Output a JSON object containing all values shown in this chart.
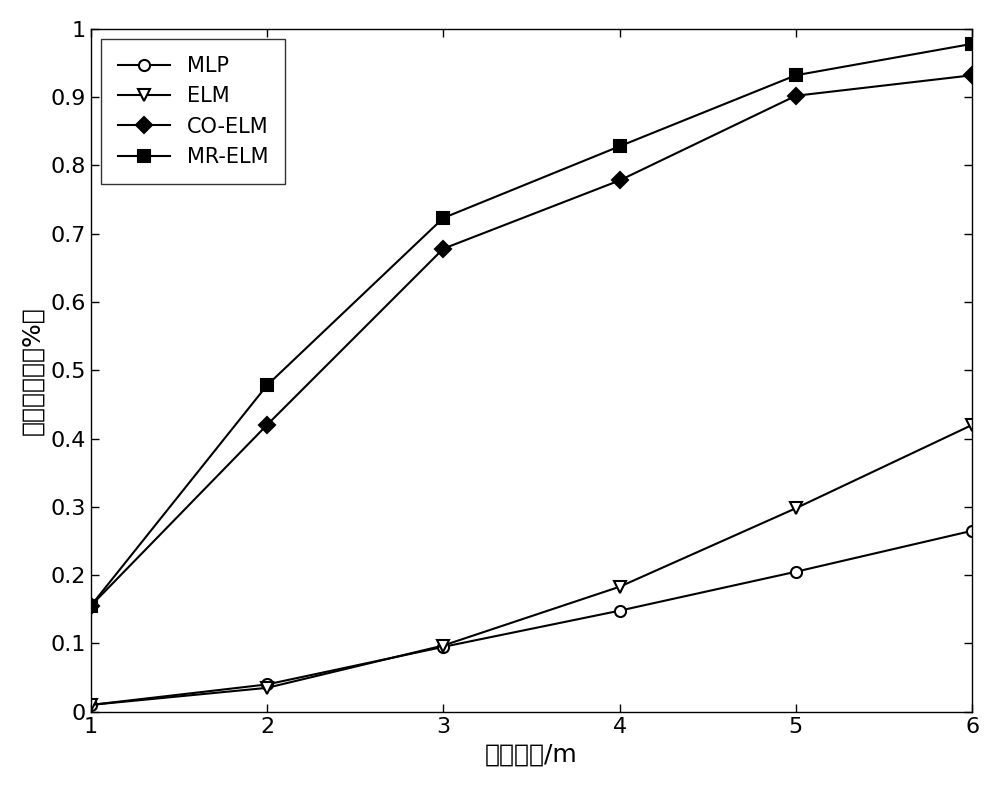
{
  "x": [
    1,
    2,
    3,
    4,
    5,
    6
  ],
  "MLP": [
    0.01,
    0.04,
    0.095,
    0.148,
    0.205,
    0.265
  ],
  "ELM": [
    0.01,
    0.035,
    0.097,
    0.183,
    0.298,
    0.42
  ],
  "CO_ELM": [
    0.155,
    0.42,
    0.678,
    0.778,
    0.902,
    0.932
  ],
  "MR_ELM": [
    0.155,
    0.478,
    0.723,
    0.828,
    0.932,
    0.978
  ],
  "xlabel": "误差距离/m",
  "ylabel": "定位准确率（%）",
  "xlim": [
    1,
    6
  ],
  "ylim": [
    0,
    1.0
  ],
  "ytick_values": [
    0,
    0.1,
    0.2,
    0.3,
    0.4,
    0.5,
    0.6,
    0.7,
    0.8,
    0.9,
    1.0
  ],
  "ytick_labels": [
    "0",
    "0.1",
    "0.2",
    "0.3",
    "0.4",
    "0.5",
    "0.6",
    "0.7",
    "0.8",
    "0.9",
    "1"
  ],
  "xticks": [
    1,
    2,
    3,
    4,
    5,
    6
  ],
  "legend_labels": [
    "MLP",
    "ELM",
    "CO-ELM",
    "MR-ELM"
  ],
  "line_color": "black",
  "marker_MLP": "o",
  "marker_ELM": "v",
  "marker_CO_ELM": "D",
  "marker_MR_ELM": "s",
  "markersize": 8,
  "linewidth": 1.5,
  "font_size_label": 18,
  "font_size_tick": 16,
  "font_size_legend": 15,
  "background_color": "#ffffff"
}
